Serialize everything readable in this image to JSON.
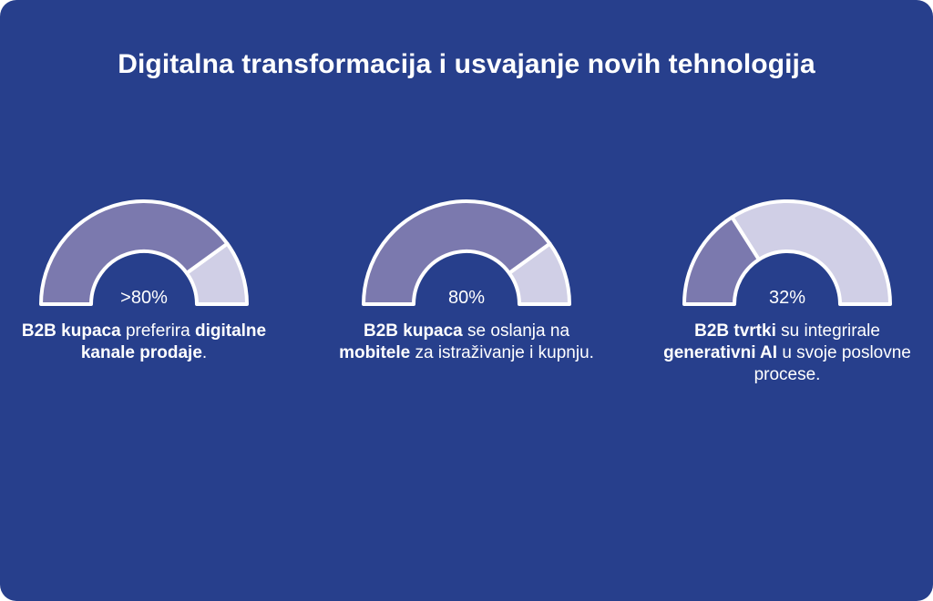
{
  "title": "Digitalna transformacija i usvajanje novih tehnologija",
  "colors": {
    "background": "#273f8c",
    "filled": "#7b79ae",
    "remainder": "#d0cfe6",
    "outline": "#ffffff"
  },
  "chart_data": [
    {
      "type": "gauge",
      "value": 80,
      "range": [
        0,
        100
      ],
      "value_label": ">80%",
      "caption": [
        {
          "text": "B2B kupaca",
          "bold": true
        },
        {
          "text": " preferira ",
          "bold": false
        },
        {
          "text": "digitalne kanale prodaje",
          "bold": true
        },
        {
          "text": ".",
          "bold": false
        }
      ]
    },
    {
      "type": "gauge",
      "value": 80,
      "range": [
        0,
        100
      ],
      "value_label": "80%",
      "caption": [
        {
          "text": "B2B kupaca",
          "bold": true
        },
        {
          "text": " se oslanja na ",
          "bold": false
        },
        {
          "text": "mobitele",
          "bold": true
        },
        {
          "text": " za istraživanje i kupnju.",
          "bold": false
        }
      ]
    },
    {
      "type": "gauge",
      "value": 32,
      "range": [
        0,
        100
      ],
      "value_label": "32%",
      "caption": [
        {
          "text": "B2B tvrtki",
          "bold": true
        },
        {
          "text": " su integrirale ",
          "bold": false
        },
        {
          "text": "generativni AI",
          "bold": true
        },
        {
          "text": " u svoje poslovne procese.",
          "bold": false
        }
      ]
    }
  ]
}
